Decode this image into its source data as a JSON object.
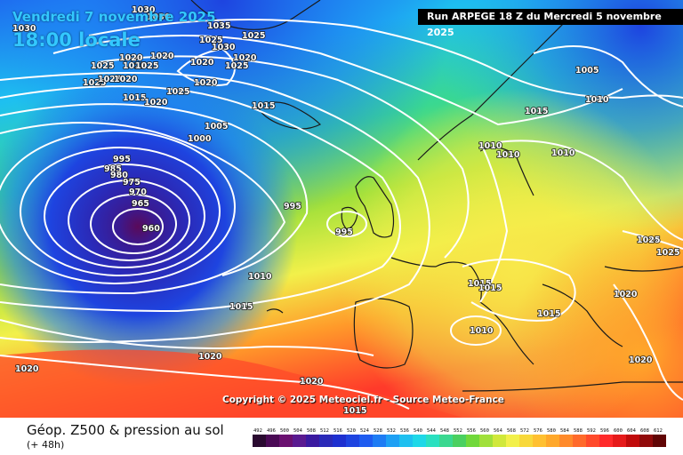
{
  "header": {
    "valid_time": "Vendredi 7 novembre 2025",
    "local_time": "18:00 locale",
    "run_info": "Run ARPEGE 18 Z du Mercredi 5 novembre 2025"
  },
  "map": {
    "copyright": "Copyright © 2025 Meteociel.fr - Source Meteo-France",
    "low_center_value": "960",
    "pressure_labels": [
      "1030",
      "1030",
      "1030",
      "1035",
      "1025",
      "1030",
      "1025",
      "1020",
      "1025",
      "1020",
      "1025",
      "1025",
      "1025",
      "1020",
      "1020",
      "1025",
      "1025",
      "1020",
      "1015",
      "1020",
      "1025",
      "1020",
      "1015",
      "1005",
      "1005",
      "1000",
      "995",
      "985",
      "980",
      "975",
      "970",
      "965",
      "960",
      "995",
      "995",
      "1010",
      "1015",
      "1015",
      "1015",
      "1010",
      "1010",
      "1010",
      "1025",
      "1025",
      "1020",
      "1015",
      "1015",
      "1010",
      "1010",
      "1020",
      "1020",
      "1020",
      "1020",
      "1015"
    ],
    "colors": {
      "deep_low": "#5a0a5a",
      "low_core": "#2a1a90",
      "blue": "#1e44e0",
      "cyan": "#1ec8f0",
      "green": "#4ad24a",
      "yellow": "#f2f04a",
      "orange": "#ff9a2a",
      "red": "#ff3a2a",
      "isobar": "#ffffff",
      "coast": "#1a1a1a"
    }
  },
  "legend": {
    "title": "Géop. Z500 & pression au sol",
    "subtitle": "(+ 48h)",
    "scale_values": [
      "492",
      "496",
      "500",
      "504",
      "508",
      "512",
      "516",
      "520",
      "524",
      "528",
      "532",
      "536",
      "540",
      "544",
      "548",
      "552",
      "556",
      "560",
      "564",
      "568",
      "572",
      "576",
      "580",
      "584",
      "588",
      "592",
      "596",
      "600",
      "604",
      "608",
      "612"
    ],
    "scale_colors": [
      "#2a0a30",
      "#4a0a55",
      "#6a1070",
      "#5a1a90",
      "#3a1aa0",
      "#2a2ab8",
      "#1e30d0",
      "#1e44e0",
      "#1e5cf0",
      "#1e7cf4",
      "#1ea0f4",
      "#1ec0f0",
      "#1ed8e8",
      "#2ae0c0",
      "#3ad890",
      "#4ad060",
      "#70d83a",
      "#a0e03a",
      "#d0e83a",
      "#f2f04a",
      "#f8d83a",
      "#ffc030",
      "#ffa82a",
      "#ff8a2a",
      "#ff6a2a",
      "#ff4a2a",
      "#ff2a2a",
      "#e61a1a",
      "#c00a0a",
      "#900a0a",
      "#600505"
    ]
  }
}
